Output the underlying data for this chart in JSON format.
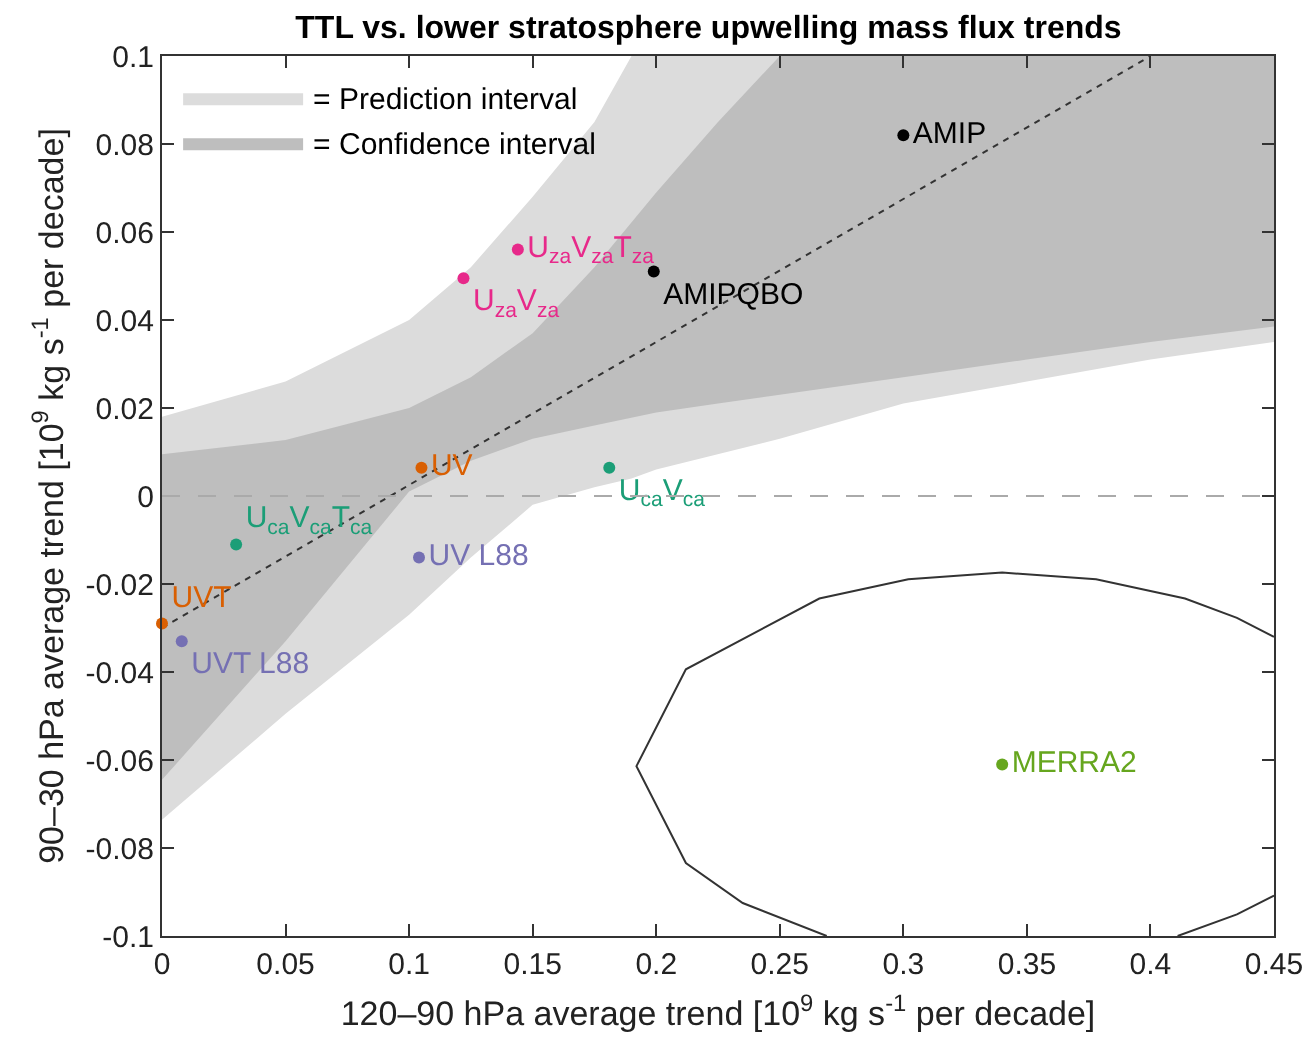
{
  "chart_data": {
    "type": "scatter",
    "title": "TTL vs. lower stratosphere upwelling mass flux trends",
    "xlabel": "120–90 hPa average trend [10$^{9}$ kg s$^{-1}$ per decade]",
    "ylabel": "90–30 hPa average trend [10$^{9}$ kg s$^{-1}$ per decade]",
    "xlim": [
      0,
      0.45
    ],
    "xticks": [
      0,
      0.05,
      0.1,
      0.15,
      0.2,
      0.25,
      0.3,
      0.35,
      0.4,
      0.45
    ],
    "ylim": [
      -0.1,
      0.1
    ],
    "yticks": [
      -0.1,
      -0.08,
      -0.06,
      -0.04,
      -0.02,
      0,
      0.02,
      0.04,
      0.06,
      0.08,
      0.1
    ],
    "grid": false,
    "legend": "top left",
    "marker": "circle",
    "ref_lines": [
      {
        "axis": "y",
        "value": 0,
        "color": "#aaaaaa",
        "line_style": "dashed"
      }
    ],
    "series": [
      {
        "name": "= Prediction interval",
        "type": "line",
        "color": "#dcdcdc",
        "marker": "none",
        "x": [
          0,
          0.05,
          0.1,
          0.125,
          0.15,
          0.175,
          0.19,
          0.2,
          0.25,
          0.3,
          0.35,
          0.4,
          0.45
        ],
        "values": [
          null,
          null,
          null,
          null,
          null,
          null,
          null,
          null,
          null,
          null,
          null,
          null,
          null
        ],
        "lower": [
          -0.0736,
          -0.0495,
          -0.027,
          -0.014,
          -0.002,
          0.002,
          0.004,
          0.006,
          0.013,
          0.021,
          0.026,
          0.031,
          0.035
        ],
        "upper": [
          0.018,
          0.026,
          0.04,
          0.052,
          0.068,
          0.085,
          0.1,
          0.1,
          0.1,
          0.1,
          0.1,
          0.1,
          0.1
        ]
      },
      {
        "name": "= Confidence interval",
        "type": "line",
        "color": "#bebebe",
        "marker": "none",
        "x": [
          0,
          0.05,
          0.1,
          0.125,
          0.15,
          0.175,
          0.2,
          0.225,
          0.25,
          0.3,
          0.35,
          0.4,
          0.45
        ],
        "values": [
          null,
          null,
          null,
          null,
          null,
          null,
          null,
          null,
          null,
          null,
          null,
          null,
          null
        ],
        "lower": [
          -0.0645,
          -0.033,
          0.001,
          0.008,
          0.013,
          0.016,
          0.019,
          0.021,
          0.023,
          0.027,
          0.031,
          0.035,
          0.0385
        ],
        "upper": [
          0.0095,
          0.0127,
          0.02,
          0.027,
          0.037,
          0.052,
          0.069,
          0.085,
          0.1,
          0.1,
          0.1,
          0.1,
          0.1
        ]
      },
      {
        "type": "line",
        "color": "#333333",
        "line_style": "dotted",
        "marker": "none",
        "x": [
          0,
          0.4
        ],
        "values": [
          -0.03,
          0.1
        ]
      },
      {
        "type": "line",
        "color": "#333333",
        "line_style": "solid",
        "marker": "none",
        "x": [
          0.45,
          0.435,
          0.414,
          0.378,
          0.34,
          0.302,
          0.266,
          0.212,
          0.192,
          0.212,
          0.235,
          0.269,
          null,
          0.411,
          0.435,
          0.45
        ],
        "values": [
          -0.032,
          -0.0277,
          -0.0233,
          -0.0189,
          -0.0174,
          -0.0189,
          -0.0233,
          -0.0394,
          -0.0614,
          -0.0834,
          -0.0925,
          -0.1,
          null,
          -0.1,
          -0.0951,
          -0.0908
        ]
      },
      {
        "name": "AMIP",
        "color": "#000000",
        "x": [
          0.3
        ],
        "values": [
          0.082
        ]
      },
      {
        "name": "AMIPQBO",
        "color": "#000000",
        "x": [
          0.199
        ],
        "values": [
          0.051
        ]
      },
      {
        "name": "U$_{za}$V$_{za}$T$_{za}$",
        "color": "#e7298a",
        "x": [
          0.144
        ],
        "values": [
          0.056
        ]
      },
      {
        "name": "U$_{za}$V$_{za}$",
        "color": "#e7298a",
        "x": [
          0.122
        ],
        "values": [
          0.0495
        ]
      },
      {
        "name": "UV",
        "color": "#d95f02",
        "x": [
          0.105
        ],
        "values": [
          0.0064
        ]
      },
      {
        "name": "U$_{ca}$V$_{ca}$",
        "color": "#1b9e77",
        "x": [
          0.181
        ],
        "values": [
          0.0064
        ]
      },
      {
        "name": "U$_{ca}$V$_{ca}$T$_{ca}$",
        "color": "#1b9e77",
        "x": [
          0.03
        ],
        "values": [
          -0.011
        ]
      },
      {
        "name": "UV L88",
        "color": "#7570b3",
        "x": [
          0.104
        ],
        "values": [
          -0.014
        ]
      },
      {
        "name": "UVT",
        "color": "#d95f02",
        "x": [
          0.0
        ],
        "values": [
          -0.029
        ]
      },
      {
        "name": "UVT L88",
        "color": "#7570b3",
        "x": [
          0.008
        ],
        "values": [
          -0.033
        ]
      },
      {
        "name": "MERRA2",
        "color": "#66a61e",
        "x": [
          0.34
        ],
        "values": [
          -0.061
        ]
      }
    ]
  }
}
